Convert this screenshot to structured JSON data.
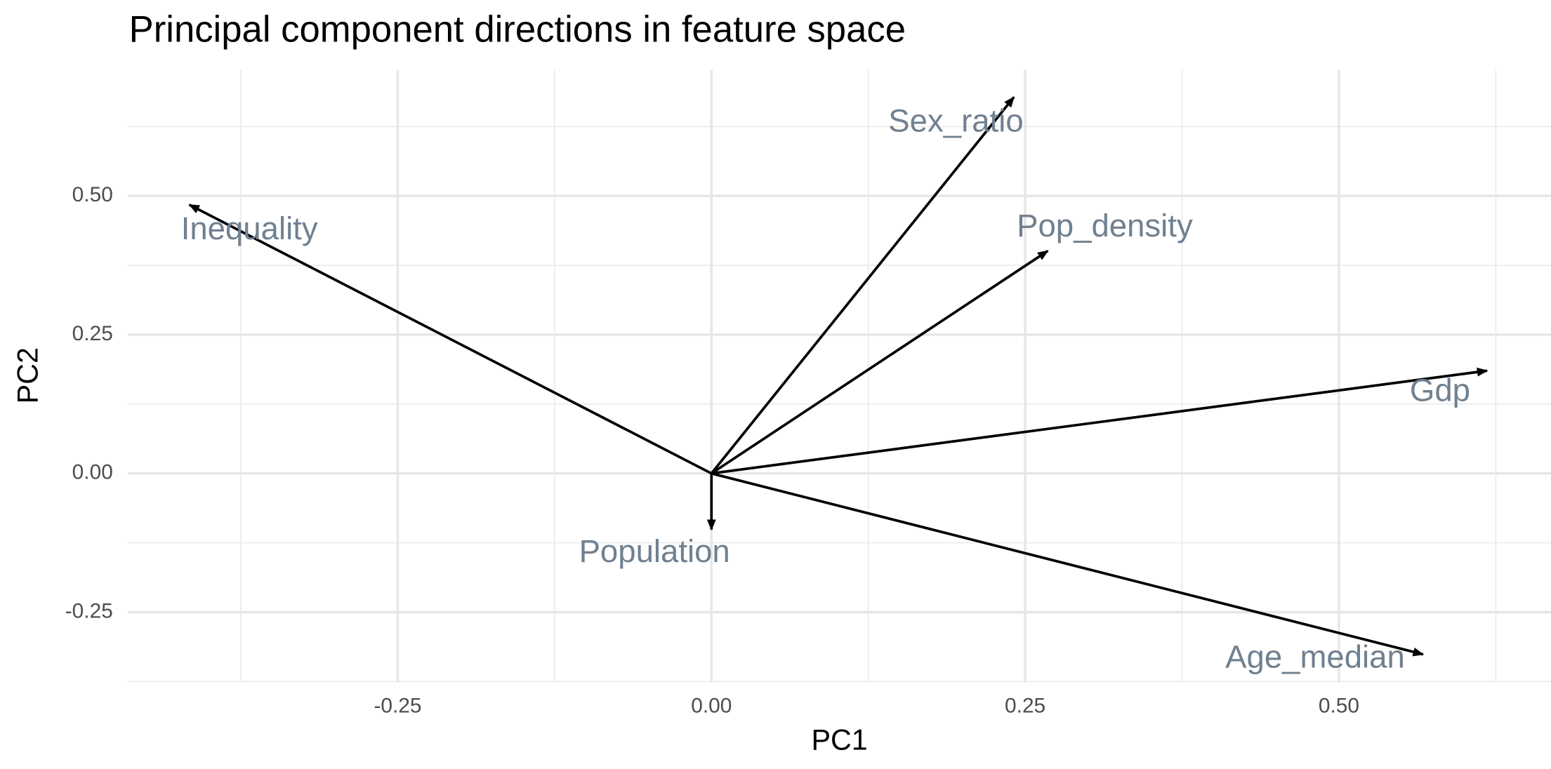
{
  "chart_data": {
    "type": "vector",
    "title": "Principal component directions in feature space",
    "x_label": "PC1",
    "y_label": "PC2",
    "categories": [
      "Inequality",
      "Sex_ratio",
      "Pop_density",
      "Gdp",
      "Age_median",
      "Population"
    ],
    "x": [
      -0.416,
      0.241,
      0.268,
      0.618,
      0.567,
      0
    ],
    "values": [
      0.484,
      0.678,
      0.401,
      0.185,
      -0.326,
      -0.101
    ],
    "color": "#000000",
    "label_color": "#708090",
    "xlim": [
      -0.465,
      0.669
    ],
    "ylim": [
      -0.376,
      0.727
    ],
    "xticks": [
      -0.25,
      {
        "value": 0,
        "label": "0.00"
      },
      0.25,
      {
        "value": 0.5,
        "label": "0.50"
      }
    ],
    "yticks": [
      -0.25,
      {
        "value": 0,
        "label": "0.00"
      },
      0.25,
      {
        "value": 0.5,
        "label": "0.50"
      }
    ],
    "grid": true
  }
}
